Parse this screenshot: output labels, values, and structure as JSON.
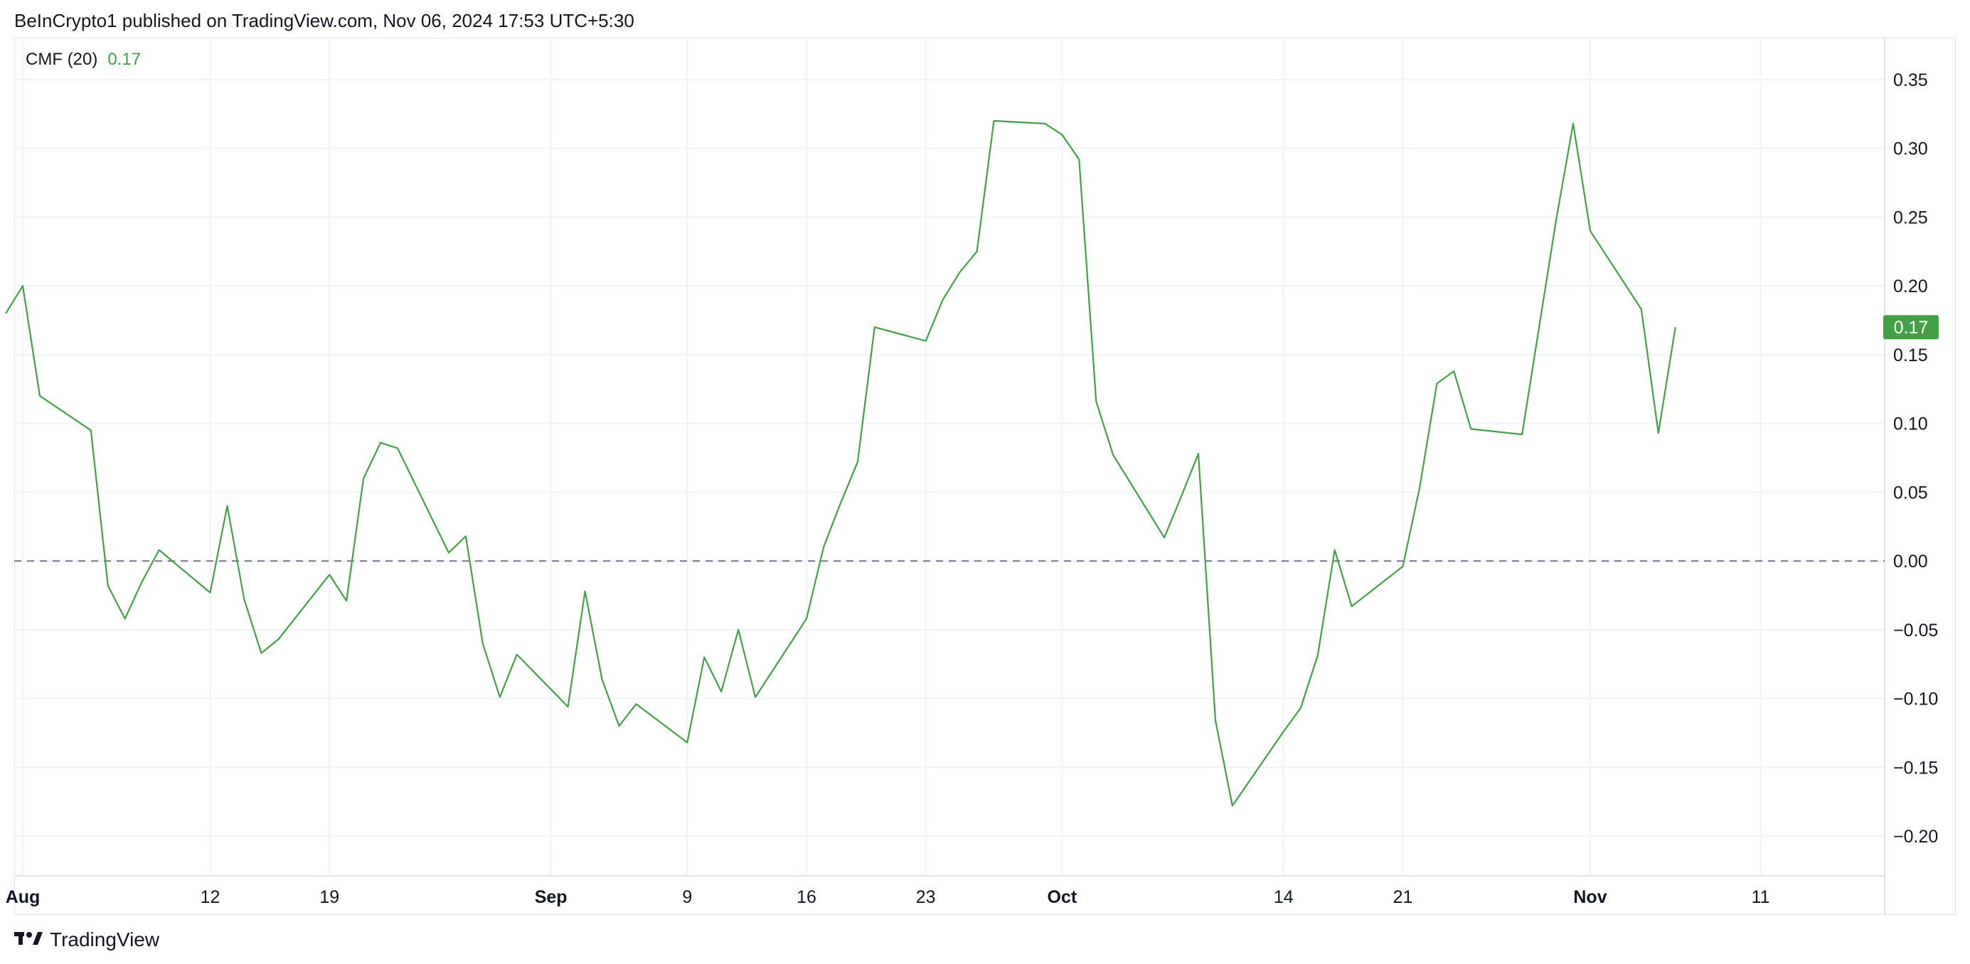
{
  "header": {
    "text": "BeInCrypto1 published on TradingView.com, Nov 06, 2024 17:53 UTC+5:30"
  },
  "legend": {
    "name": "CMF (20)",
    "value": "0.17"
  },
  "footer": {
    "brand": "TradingView",
    "logo_icon": "tradingview-logo-icon"
  },
  "colors": {
    "line": "#43a047",
    "grid": "#f0f3fa",
    "zero_line": "#787b86",
    "badge_bg": "#43a047",
    "badge_text": "#ffffff"
  },
  "chart_data": {
    "type": "line",
    "title": "",
    "series": [
      {
        "name": "CMF (20)",
        "x": [
          "2024-07-31",
          "2024-08-01",
          "2024-08-02",
          "2024-08-05",
          "2024-08-06",
          "2024-08-07",
          "2024-08-08",
          "2024-08-09",
          "2024-08-12",
          "2024-08-13",
          "2024-08-14",
          "2024-08-15",
          "2024-08-16",
          "2024-08-19",
          "2024-08-20",
          "2024-08-21",
          "2024-08-22",
          "2024-08-23",
          "2024-08-26",
          "2024-08-27",
          "2024-08-28",
          "2024-08-29",
          "2024-08-30",
          "2024-09-02",
          "2024-09-03",
          "2024-09-04",
          "2024-09-05",
          "2024-09-06",
          "2024-09-09",
          "2024-09-10",
          "2024-09-11",
          "2024-09-12",
          "2024-09-13",
          "2024-09-16",
          "2024-09-17",
          "2024-09-18",
          "2024-09-19",
          "2024-09-20",
          "2024-09-23",
          "2024-09-24",
          "2024-09-25",
          "2024-09-26",
          "2024-09-27",
          "2024-09-30",
          "2024-10-01",
          "2024-10-02",
          "2024-10-03",
          "2024-10-04",
          "2024-10-07",
          "2024-10-08",
          "2024-10-09",
          "2024-10-10",
          "2024-10-11",
          "2024-10-14",
          "2024-10-15",
          "2024-10-16",
          "2024-10-17",
          "2024-10-18",
          "2024-10-21",
          "2024-10-22",
          "2024-10-23",
          "2024-10-24",
          "2024-10-25",
          "2024-10-28",
          "2024-10-29",
          "2024-10-30",
          "2024-10-31",
          "2024-11-01",
          "2024-11-04",
          "2024-11-05",
          "2024-11-06"
        ],
        "values": [
          0.18,
          0.2,
          0.12,
          0.095,
          -0.018,
          -0.042,
          -0.015,
          0.008,
          -0.023,
          0.04,
          -0.028,
          -0.067,
          -0.057,
          -0.01,
          -0.029,
          0.06,
          0.086,
          0.082,
          0.006,
          0.018,
          -0.06,
          -0.099,
          -0.068,
          -0.106,
          -0.022,
          -0.086,
          -0.12,
          -0.104,
          -0.132,
          -0.07,
          -0.095,
          -0.05,
          -0.099,
          -0.042,
          0.01,
          0.042,
          0.072,
          0.17,
          0.16,
          0.19,
          0.21,
          0.225,
          0.32,
          0.318,
          0.31,
          0.292,
          0.116,
          0.077,
          0.017,
          0.047,
          0.078,
          -0.116,
          -0.178,
          -0.124,
          -0.107,
          -0.069,
          0.008,
          -0.033,
          -0.004,
          0.054,
          0.129,
          0.138,
          0.096,
          0.092,
          0.17,
          0.248,
          0.318,
          0.24,
          0.183,
          0.093,
          0.17
        ]
      }
    ],
    "xlabel": "",
    "ylabel": "",
    "ylim": [
      -0.23,
      0.38
    ],
    "yticks": [
      0.35,
      0.3,
      0.25,
      0.2,
      0.15,
      0.1,
      0.05,
      0.0,
      -0.05,
      -0.1,
      -0.15,
      -0.2
    ],
    "ytick_labels": [
      "0.35",
      "0.30",
      "0.25",
      "0.20",
      "0.15",
      "0.10",
      "0.05",
      "0.00",
      "−0.05",
      "−0.10",
      "−0.15",
      "−0.20"
    ],
    "xticks": [
      {
        "label": "Aug",
        "date": "2024-08-01",
        "bold": true
      },
      {
        "label": "12",
        "date": "2024-08-12",
        "bold": false
      },
      {
        "label": "19",
        "date": "2024-08-19",
        "bold": false
      },
      {
        "label": "Sep",
        "date": "2024-09-01",
        "bold": true
      },
      {
        "label": "9",
        "date": "2024-09-09",
        "bold": false
      },
      {
        "label": "16",
        "date": "2024-09-16",
        "bold": false
      },
      {
        "label": "23",
        "date": "2024-09-23",
        "bold": false
      },
      {
        "label": "Oct",
        "date": "2024-10-01",
        "bold": true
      },
      {
        "label": "14",
        "date": "2024-10-14",
        "bold": false
      },
      {
        "label": "21",
        "date": "2024-10-21",
        "bold": false
      },
      {
        "label": "Nov",
        "date": "2024-11-01",
        "bold": true
      },
      {
        "label": "11",
        "date": "2024-11-11",
        "bold": false
      }
    ],
    "zero_line": {
      "value": 0.0,
      "style": "dashed"
    },
    "last_value_badge": "0.17",
    "grid": true,
    "legend_position": "top-left"
  }
}
